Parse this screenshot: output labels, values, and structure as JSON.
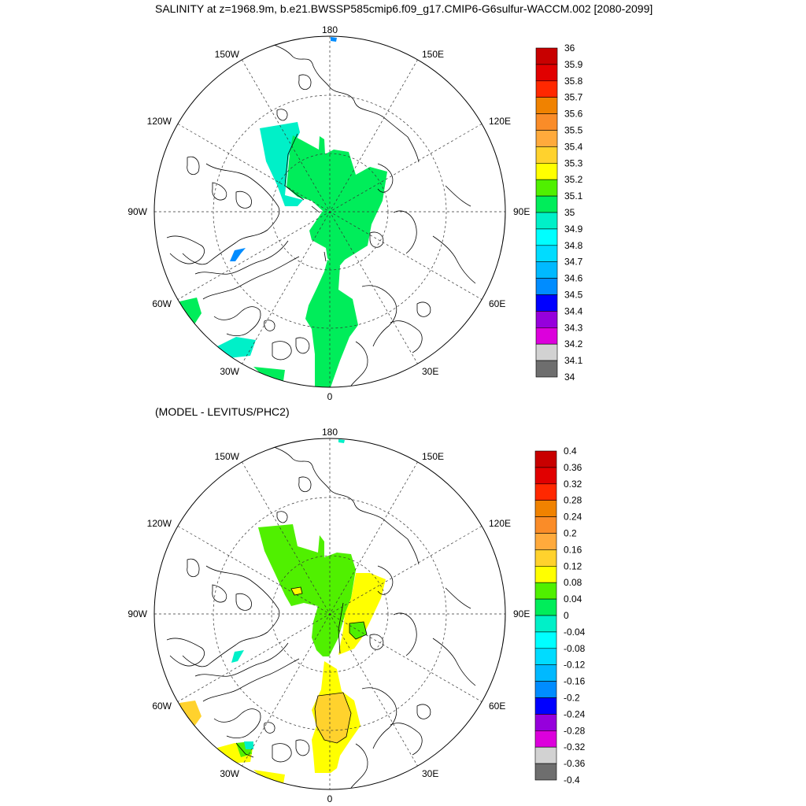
{
  "title": "SALINITY at z=1968.9m, b.e21.BWSSP585cmip6.f09_g17.CMIP6-G6sulfur-WACCM.002 [2080-2099]",
  "diff_title": "(MODEL - LEVITUS/PHC2)",
  "longitude_labels": [
    "180",
    "150E",
    "120E",
    "90E",
    "60E",
    "30E",
    "0",
    "30W",
    "60W",
    "90W",
    "120W",
    "150W"
  ],
  "top_colorbar": {
    "labels": [
      "36",
      "35.9",
      "35.8",
      "35.7",
      "35.6",
      "35.5",
      "35.4",
      "35.3",
      "35.2",
      "35.1",
      "35",
      "34.9",
      "34.8",
      "34.7",
      "34.6",
      "34.5",
      "34.4",
      "34.3",
      "34.2",
      "34.1",
      "34"
    ],
    "colors_top_to_bottom": [
      "#c80000",
      "#e10000",
      "#ff2800",
      "#f08200",
      "#fa8c28",
      "#ffaa3c",
      "#ffd22d",
      "#ffff00",
      "#50f000",
      "#00ed5a",
      "#00f0c8",
      "#00ffff",
      "#00dcff",
      "#00b9ff",
      "#008cff",
      "#0000ff",
      "#9600dc",
      "#dc00dc",
      "#d2d2d2",
      "#6e6e6e"
    ]
  },
  "bottom_colorbar": {
    "labels": [
      "0.4",
      "0.36",
      "0.32",
      "0.28",
      "0.24",
      "0.2",
      "0.16",
      "0.12",
      "0.08",
      "0.04",
      "0",
      "-0.04",
      "-0.08",
      "-0.12",
      "-0.16",
      "-0.2",
      "-0.24",
      "-0.28",
      "-0.32",
      "-0.36",
      "-0.4"
    ],
    "colors_top_to_bottom": [
      "#c80000",
      "#e10000",
      "#ff2800",
      "#f08200",
      "#fa8c28",
      "#ffaa3c",
      "#ffd22d",
      "#ffff00",
      "#50f000",
      "#00ed5a",
      "#00f0c8",
      "#00ffff",
      "#00dcff",
      "#00b9ff",
      "#008cff",
      "#0000ff",
      "#9600dc",
      "#dc00dc",
      "#d2d2d2",
      "#6e6e6e"
    ]
  },
  "fill_colors": {
    "top_main": "#00ed5a",
    "top_cyan": "#00f0c8",
    "top_blue": "#008cff",
    "diff_green": "#50f000",
    "diff_yellow": "#ffff00",
    "diff_orange": "#ffd22d",
    "diff_cyan": "#00f0c8"
  }
}
